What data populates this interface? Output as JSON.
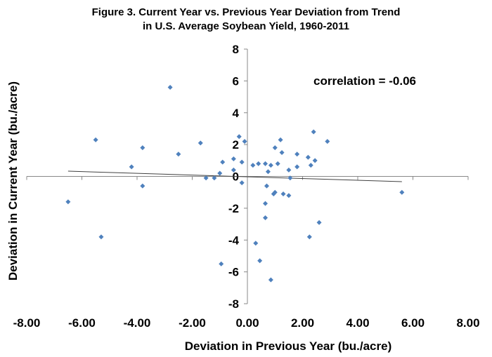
{
  "chart_data": {
    "type": "scatter",
    "title": "Figure 3. Current Year vs. Previous Year Deviation from Trend",
    "subtitle": "in U.S. Average Soybean Yield, 1960-2011",
    "xlabel": "Deviation in Previous Year (bu./acre)",
    "ylabel": "Deviation in Current Year (bu./acre)",
    "annotation": "correlation = -0.06",
    "xlim": [
      -8,
      8
    ],
    "ylim": [
      -8,
      8
    ],
    "x_ticks": [
      "-8.00",
      "-6.00",
      "-4.00",
      "-2.00",
      "0.00",
      "2.00",
      "4.00",
      "6.00",
      "8.00"
    ],
    "y_ticks": [
      "-8",
      "-6",
      "-4",
      "-2",
      "0",
      "2",
      "4",
      "6",
      "8"
    ],
    "grid": false,
    "marker_color": "#4f81bd",
    "trendline": {
      "x": [
        -6.5,
        5.6
      ],
      "y": [
        0.33,
        -0.33
      ],
      "color": "#404040"
    },
    "points": [
      {
        "x": -6.5,
        "y": -1.6
      },
      {
        "x": -5.5,
        "y": 2.3
      },
      {
        "x": -5.3,
        "y": -3.8
      },
      {
        "x": -4.2,
        "y": 0.6
      },
      {
        "x": -3.8,
        "y": 1.8
      },
      {
        "x": -3.8,
        "y": -0.6
      },
      {
        "x": -2.8,
        "y": 5.6
      },
      {
        "x": -2.5,
        "y": 1.4
      },
      {
        "x": -1.7,
        "y": 2.1
      },
      {
        "x": -1.5,
        "y": -0.1
      },
      {
        "x": -1.2,
        "y": -0.1
      },
      {
        "x": -1.0,
        "y": 0.2
      },
      {
        "x": -0.9,
        "y": 0.9
      },
      {
        "x": -0.95,
        "y": -5.5
      },
      {
        "x": -0.5,
        "y": 1.1
      },
      {
        "x": -0.5,
        "y": 0.4
      },
      {
        "x": -0.3,
        "y": 2.5
      },
      {
        "x": -0.2,
        "y": 0.9
      },
      {
        "x": -0.2,
        "y": -0.4
      },
      {
        "x": -0.1,
        "y": 2.2
      },
      {
        "x": 0.2,
        "y": 0.7
      },
      {
        "x": 0.3,
        "y": -4.2
      },
      {
        "x": 0.4,
        "y": 0.8
      },
      {
        "x": 0.45,
        "y": -5.3
      },
      {
        "x": 0.65,
        "y": 0.8
      },
      {
        "x": 0.65,
        "y": -1.7
      },
      {
        "x": 0.65,
        "y": -2.6
      },
      {
        "x": 0.7,
        "y": -0.6
      },
      {
        "x": 0.75,
        "y": 0.3
      },
      {
        "x": 0.85,
        "y": 0.7
      },
      {
        "x": 0.85,
        "y": -6.5
      },
      {
        "x": 0.95,
        "y": -1.1
      },
      {
        "x": 1.0,
        "y": 1.8
      },
      {
        "x": 1.0,
        "y": -1.0
      },
      {
        "x": 1.1,
        "y": 0.8
      },
      {
        "x": 1.2,
        "y": 2.3
      },
      {
        "x": 1.25,
        "y": 1.5
      },
      {
        "x": 1.3,
        "y": -1.1
      },
      {
        "x": 1.5,
        "y": -1.2
      },
      {
        "x": 1.5,
        "y": 0.4
      },
      {
        "x": 1.55,
        "y": -0.1
      },
      {
        "x": 1.8,
        "y": 1.4
      },
      {
        "x": 1.8,
        "y": 0.6
      },
      {
        "x": 2.2,
        "y": 1.2
      },
      {
        "x": 2.25,
        "y": -3.8
      },
      {
        "x": 2.3,
        "y": 0.7
      },
      {
        "x": 2.4,
        "y": 2.8
      },
      {
        "x": 2.45,
        "y": 1.0
      },
      {
        "x": 2.6,
        "y": -2.9
      },
      {
        "x": 2.9,
        "y": 2.2
      },
      {
        "x": 5.6,
        "y": -1.0
      }
    ]
  }
}
